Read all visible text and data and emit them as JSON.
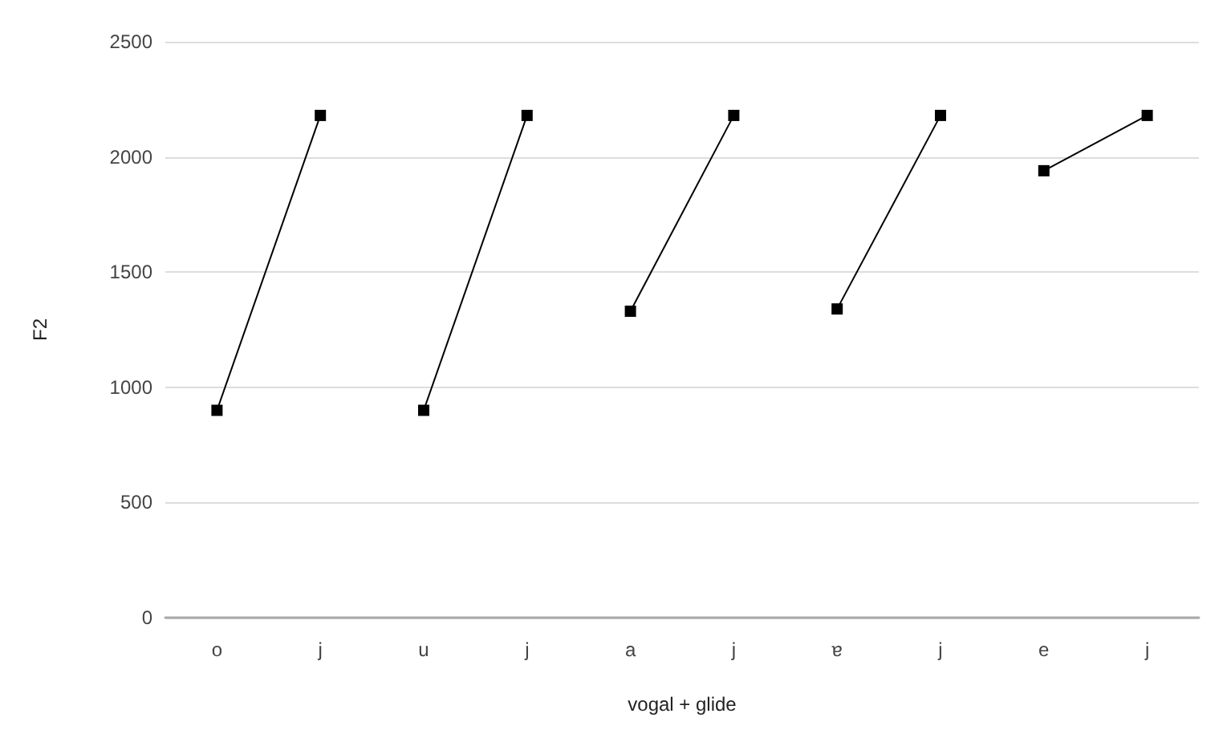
{
  "chart_data": {
    "type": "line",
    "xlabel": "vogal + glide",
    "ylabel": "F2",
    "categories": [
      "o",
      "j",
      "u",
      "j",
      "a",
      "j",
      "ɐ",
      "j",
      "e",
      "j"
    ],
    "series": [
      {
        "color": "#000000",
        "values": [
          900,
          2180,
          null,
          null,
          null,
          null,
          null,
          null,
          null,
          null
        ]
      },
      {
        "color": "#000000",
        "values": [
          null,
          null,
          900,
          2180,
          null,
          null,
          null,
          null,
          null,
          null
        ]
      },
      {
        "color": "#000000",
        "values": [
          null,
          null,
          null,
          null,
          1330,
          2180,
          null,
          null,
          null,
          null
        ]
      },
      {
        "color": "#000000",
        "values": [
          null,
          null,
          null,
          null,
          null,
          null,
          1340,
          2180,
          null,
          null
        ]
      },
      {
        "color": "#000000",
        "values": [
          null,
          null,
          null,
          null,
          null,
          null,
          null,
          null,
          1940,
          2180
        ]
      }
    ],
    "ylim": [
      0,
      2500
    ],
    "yticks": [
      0,
      500,
      1000,
      1500,
      2000,
      2500
    ],
    "grid": "y",
    "marker": "square",
    "line_style": "solid"
  }
}
